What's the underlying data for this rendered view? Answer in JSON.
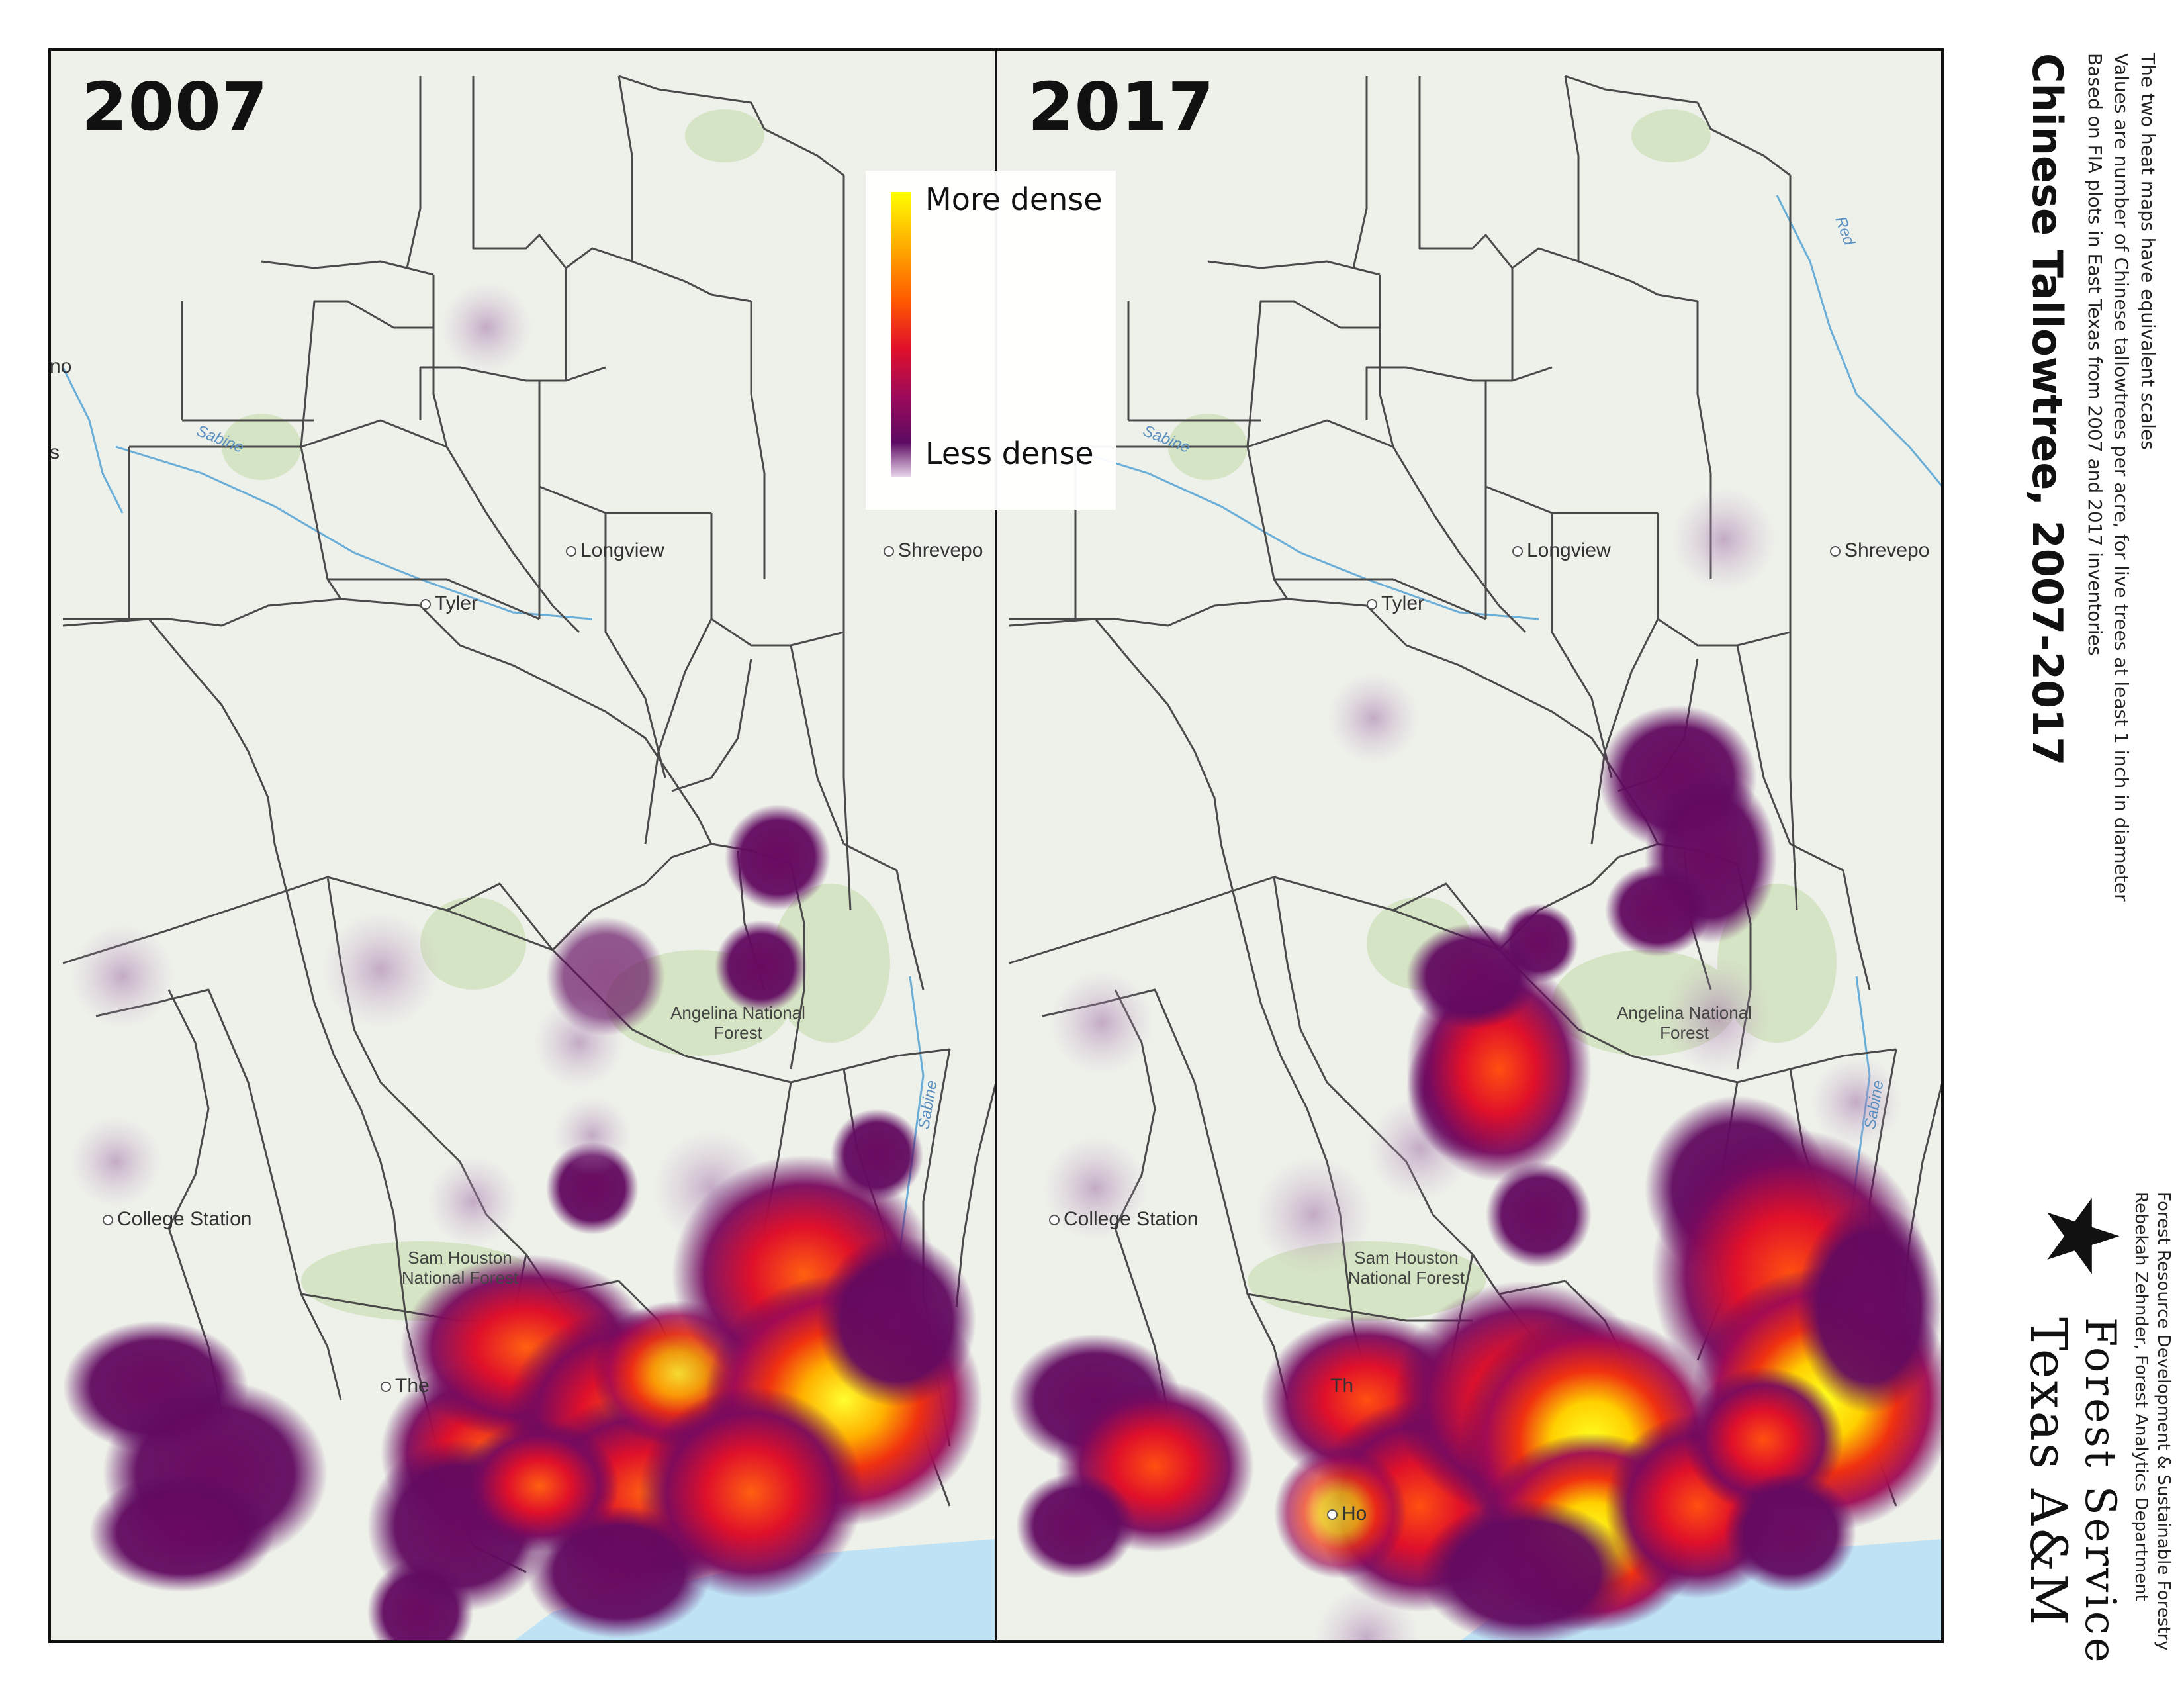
{
  "title": "Chinese Tallowtree, 2007-2017",
  "subtitle_lines": [
    "Based on FIA plots in East Texas from 2007 and 2017 inventories",
    "Values are number of Chinese tallowtrees per acre, for live trees at least 1 inch in diameter",
    "The two heat maps have equivalent scales"
  ],
  "legend": {
    "high_label": "More dense",
    "low_label": "Less dense",
    "ramp_colors": [
      "#ffff00",
      "#ffb000",
      "#ff5a00",
      "#e0102a",
      "#9c0a5a",
      "#5c0a62",
      "#e8d4ea"
    ]
  },
  "panels": [
    {
      "year": "2007",
      "cities": [
        "Longview",
        "Tyler",
        "College Station",
        "The",
        "Shrevepo",
        "no",
        "s"
      ],
      "forests": [
        "Angelina National Forest",
        "Sam Houston National Forest"
      ],
      "rivers": [
        "Sabine",
        "Sabine"
      ]
    },
    {
      "year": "2017",
      "cities": [
        "Longview",
        "Tyler",
        "College Station",
        "Th",
        "Shrevepo",
        "Ho"
      ],
      "forests": [
        "Angelina National Forest",
        "Sam Houston National Forest"
      ],
      "rivers": [
        "Sabine",
        "Sabine",
        "Red"
      ]
    }
  ],
  "credits": {
    "organization_line1": "Texas A&M",
    "organization_line2": "Forest Service",
    "logo_icon": "star-logo-icon",
    "author": "Rebekah Zehnder, Forest Analytics Department",
    "department": "Forest Resource Development & Sustainable Forestry"
  },
  "colors": {
    "water": "#bfe3f5",
    "land": "#eef1ea",
    "forest_patch": "#d5e4c4",
    "county_border": "#4a4a4a"
  }
}
